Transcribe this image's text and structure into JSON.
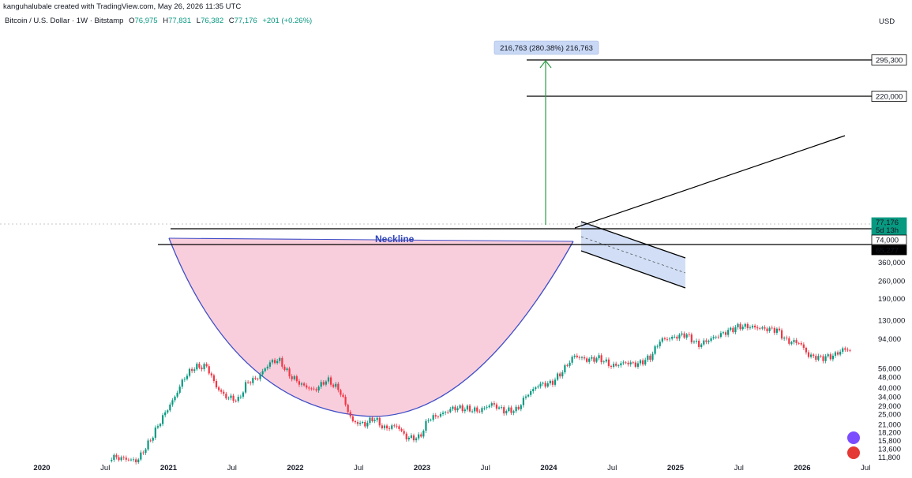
{
  "header": {
    "attribution": "kanguhalubale created with TradingView.com, May 26, 2026 11:35 UTC",
    "symbol": "Bitcoin / U.S. Dollar · 1W · Bitstamp",
    "open_label": "O",
    "open": "76,975",
    "high_label": "H",
    "high": "77,831",
    "low_label": "L",
    "low": "76,382",
    "close_label": "C",
    "close": "77,176",
    "change": "+201 (+0.26%)",
    "currency": "USD"
  },
  "colors": {
    "up": "#089981",
    "down": "#f23645",
    "cup_fill": "#f8c5d6",
    "cup_line": "#3f4fc8",
    "channel_fill": "#c9d8f5",
    "arrow": "#2e9b45",
    "neckline_text": "#2f45b8"
  },
  "chart_data": {
    "type": "candlestick",
    "scale": "log",
    "y_ticks": [
      "360,000",
      "260,000",
      "190,000",
      "130,000",
      "94,000",
      "56,000",
      "48,000",
      "40,000",
      "34,000",
      "29,000",
      "25,000",
      "21,000",
      "18,200",
      "15,800",
      "13,600",
      "11,800"
    ],
    "y_tick_values": [
      360000,
      260000,
      190000,
      130000,
      94000,
      56000,
      48000,
      40000,
      34000,
      29000,
      25000,
      21000,
      18200,
      15800,
      13600,
      11800
    ],
    "x_ticks": [
      {
        "label": "2020",
        "date": 2020.0,
        "year": true
      },
      {
        "label": "Jul",
        "date": 2020.5,
        "year": false
      },
      {
        "label": "2021",
        "date": 2021.0,
        "year": true
      },
      {
        "label": "Jul",
        "date": 2021.5,
        "year": false
      },
      {
        "label": "2022",
        "date": 2022.0,
        "year": true
      },
      {
        "label": "Jul",
        "date": 2022.5,
        "year": false
      },
      {
        "label": "2023",
        "date": 2023.0,
        "year": true
      },
      {
        "label": "Jul",
        "date": 2023.5,
        "year": false
      },
      {
        "label": "2024",
        "date": 2024.0,
        "year": true
      },
      {
        "label": "Jul",
        "date": 2024.5,
        "year": false
      },
      {
        "label": "2025",
        "date": 2025.0,
        "year": true
      },
      {
        "label": "Jul",
        "date": 2025.5,
        "year": false
      },
      {
        "label": "2026",
        "date": 2026.0,
        "year": true
      },
      {
        "label": "Jul",
        "date": 2026.5,
        "year": false
      }
    ],
    "price_path": [
      [
        2020.55,
        11800
      ],
      [
        2020.65,
        11500
      ],
      [
        2020.75,
        11000
      ],
      [
        2020.85,
        15500
      ],
      [
        2020.95,
        23500
      ],
      [
        2021.05,
        34000
      ],
      [
        2021.12,
        47000
      ],
      [
        2021.2,
        57000
      ],
      [
        2021.3,
        58000
      ],
      [
        2021.38,
        40000
      ],
      [
        2021.45,
        34000
      ],
      [
        2021.55,
        32000
      ],
      [
        2021.62,
        44000
      ],
      [
        2021.7,
        47000
      ],
      [
        2021.8,
        62000
      ],
      [
        2021.87,
        65000
      ],
      [
        2021.95,
        50000
      ],
      [
        2022.05,
        42000
      ],
      [
        2022.15,
        38000
      ],
      [
        2022.25,
        46000
      ],
      [
        2022.35,
        38000
      ],
      [
        2022.45,
        22000
      ],
      [
        2022.55,
        21000
      ],
      [
        2022.62,
        23500
      ],
      [
        2022.7,
        19500
      ],
      [
        2022.8,
        20500
      ],
      [
        2022.88,
        16500
      ],
      [
        2022.98,
        16600
      ],
      [
        2023.05,
        23000
      ],
      [
        2023.15,
        25000
      ],
      [
        2023.25,
        28000
      ],
      [
        2023.35,
        27500
      ],
      [
        2023.45,
        26500
      ],
      [
        2023.55,
        30000
      ],
      [
        2023.65,
        26500
      ],
      [
        2023.75,
        27000
      ],
      [
        2023.82,
        34500
      ],
      [
        2023.92,
        42000
      ],
      [
        2024.02,
        43000
      ],
      [
        2024.1,
        52000
      ],
      [
        2024.2,
        70000
      ],
      [
        2024.3,
        65000
      ],
      [
        2024.4,
        67000
      ],
      [
        2024.5,
        58000
      ],
      [
        2024.6,
        62000
      ],
      [
        2024.7,
        60000
      ],
      [
        2024.8,
        68000
      ],
      [
        2024.88,
        92000
      ],
      [
        2024.98,
        96000
      ],
      [
        2025.08,
        102000
      ],
      [
        2025.18,
        84000
      ],
      [
        2025.28,
        94000
      ],
      [
        2025.4,
        106000
      ],
      [
        2025.5,
        117000
      ],
      [
        2025.6,
        116000
      ],
      [
        2025.7,
        112000
      ],
      [
        2025.8,
        110000
      ],
      [
        2025.88,
        90000
      ],
      [
        2025.98,
        88000
      ],
      [
        2026.05,
        70000
      ],
      [
        2026.15,
        67000
      ],
      [
        2026.25,
        70000
      ],
      [
        2026.32,
        78000
      ],
      [
        2026.38,
        77176
      ]
    ],
    "annotations": {
      "measured_move_label": "216,763 (280.38%) 216,763",
      "target_1": "295,300",
      "target_2": "220,000",
      "current_price": "77,176",
      "countdown": "5d 13h",
      "level_1": "74,000",
      "level_2": "65,277",
      "neckline": "Neckline"
    }
  }
}
